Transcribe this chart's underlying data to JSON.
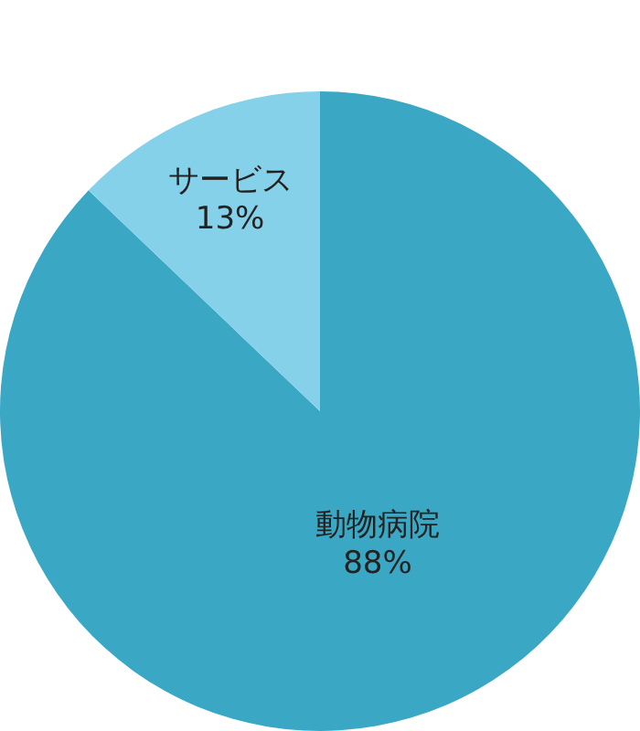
{
  "chart_data": {
    "type": "pie",
    "categories": [
      "動物病院",
      "サービス"
    ],
    "values": [
      88,
      13
    ],
    "colors": [
      "#3aa8c5",
      "#85d1ea"
    ],
    "value_labels": [
      "88%",
      "13%"
    ]
  }
}
